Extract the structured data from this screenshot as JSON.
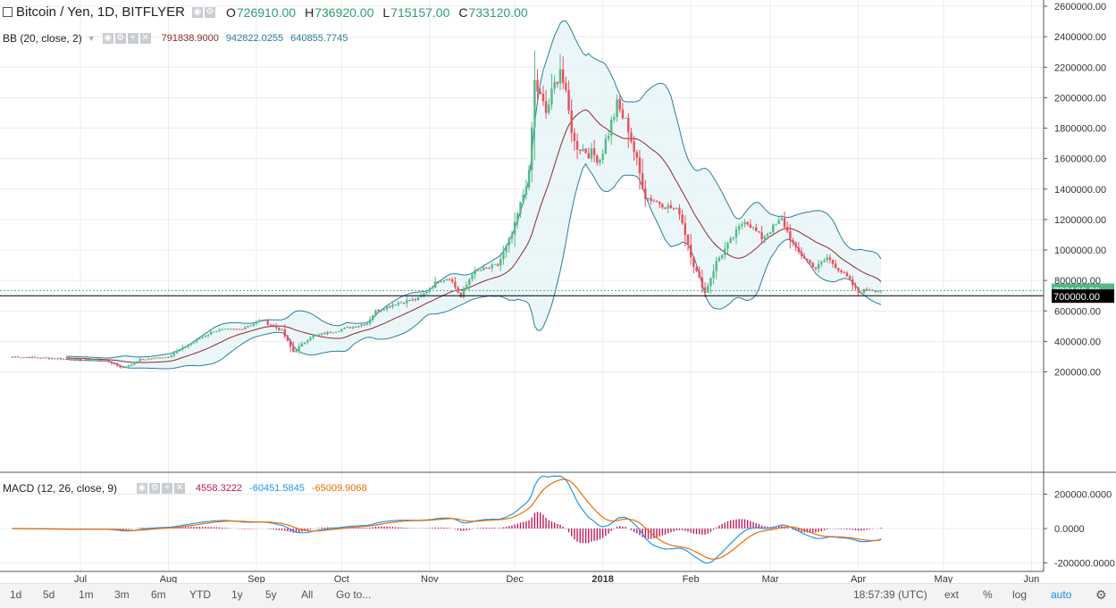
{
  "header": {
    "symbol_title": "Bitcoin / Yen, 1D, BITFLYER",
    "ohlc": [
      {
        "label": "O",
        "value": "726910.00"
      },
      {
        "label": "H",
        "value": "736920.00"
      },
      {
        "label": "L",
        "value": "715157.00"
      },
      {
        "label": "C",
        "value": "733120.00"
      }
    ]
  },
  "bb_legend": {
    "title": "BB (20, close, 2)",
    "values": [
      {
        "value": "791838.9000",
        "color": "#8d2b2b"
      },
      {
        "value": "942822.0255",
        "color": "#2a7f9b"
      },
      {
        "value": "640855.7745",
        "color": "#2a7f9b"
      }
    ]
  },
  "macd_legend": {
    "title": "MACD (12, 26, close, 9)",
    "values": [
      {
        "value": "4558.3222",
        "color": "#c2185b"
      },
      {
        "value": "-60451.5845",
        "color": "#2196f3"
      },
      {
        "value": "-65009.9068",
        "color": "#ef6c00"
      }
    ]
  },
  "price_labels": {
    "last": "733120.00",
    "level": "700000.00"
  },
  "time_axis": [
    "Jul",
    "Aug",
    "Sep",
    "Oct",
    "Nov",
    "Dec",
    "2018",
    "Feb",
    "Mar",
    "Apr",
    "May",
    "Jun"
  ],
  "bottom_toolbar": {
    "ranges": [
      "1d",
      "5d",
      "1m",
      "3m",
      "6m",
      "YTD",
      "1y",
      "5y",
      "All"
    ],
    "goto": "Go to...",
    "clock": "18:57:39 (UTC)",
    "right": [
      "ext",
      "%",
      "log",
      "auto"
    ],
    "active": "auto"
  },
  "chart_data": [
    {
      "type": "candlestick",
      "title": "Bitcoin / Yen, 1D, BITFLYER",
      "x_axis": "date",
      "ylim": [
        100000,
        2600000
      ],
      "y_ticks": [
        200000,
        400000,
        600000,
        800000,
        1000000,
        1200000,
        1400000,
        1600000,
        1800000,
        2000000,
        2200000,
        2400000,
        2600000
      ],
      "y_tick_labels": [
        "200000.00",
        "400000.00",
        "600000.00",
        "800000.00",
        "1000000.00",
        "1200000.00",
        "1400000.00",
        "1600000.00",
        "1800000.00",
        "2000000.00",
        "2200000.00",
        "2400000.00",
        "2600000.00"
      ],
      "grid": true,
      "horizontal_line": 700000,
      "up_color": "#53b987",
      "down_color": "#eb4d5c",
      "close_anchors": [
        [
          "2017-06-07",
          300000
        ],
        [
          "2017-06-20",
          290000
        ],
        [
          "2017-07-01",
          280000
        ],
        [
          "2017-07-10",
          275000
        ],
        [
          "2017-07-16",
          225000
        ],
        [
          "2017-07-22",
          280000
        ],
        [
          "2017-08-01",
          300000
        ],
        [
          "2017-08-08",
          380000
        ],
        [
          "2017-08-17",
          470000
        ],
        [
          "2017-08-26",
          480000
        ],
        [
          "2017-09-03",
          540000
        ],
        [
          "2017-09-10",
          470000
        ],
        [
          "2017-09-14",
          330000
        ],
        [
          "2017-09-20",
          430000
        ],
        [
          "2017-09-29",
          470000
        ],
        [
          "2017-10-10",
          520000
        ],
        [
          "2017-10-13",
          600000
        ],
        [
          "2017-10-20",
          650000
        ],
        [
          "2017-10-28",
          680000
        ],
        [
          "2017-11-04",
          800000
        ],
        [
          "2017-11-08",
          820000
        ],
        [
          "2017-11-12",
          690000
        ],
        [
          "2017-11-16",
          850000
        ],
        [
          "2017-11-25",
          900000
        ],
        [
          "2017-11-30",
          1100000
        ],
        [
          "2017-12-06",
          1500000
        ],
        [
          "2017-12-08",
          2100000
        ],
        [
          "2017-12-12",
          1900000
        ],
        [
          "2017-12-17",
          2200000
        ],
        [
          "2017-12-22",
          1700000
        ],
        [
          "2017-12-26",
          1650000
        ],
        [
          "2017-12-31",
          1600000
        ],
        [
          "2018-01-06",
          1950000
        ],
        [
          "2018-01-10",
          1800000
        ],
        [
          "2018-01-16",
          1350000
        ],
        [
          "2018-01-22",
          1300000
        ],
        [
          "2018-01-28",
          1250000
        ],
        [
          "2018-02-02",
          900000
        ],
        [
          "2018-02-06",
          720000
        ],
        [
          "2018-02-10",
          920000
        ],
        [
          "2018-02-20",
          1200000
        ],
        [
          "2018-02-26",
          1080000
        ],
        [
          "2018-03-05",
          1200000
        ],
        [
          "2018-03-10",
          1000000
        ],
        [
          "2018-03-17",
          880000
        ],
        [
          "2018-03-21",
          950000
        ],
        [
          "2018-03-28",
          820000
        ],
        [
          "2018-04-01",
          720000
        ],
        [
          "2018-04-05",
          745000
        ],
        [
          "2018-04-09",
          733120
        ]
      ],
      "bollinger_bands": {
        "period": 20,
        "stddev": 2,
        "basis_last": 791838.9,
        "upper_last": 942822.0255,
        "lower_last": 640855.7745
      }
    },
    {
      "type": "line",
      "title": "MACD (12, 26, close, 9)",
      "x_axis": "date",
      "ylim": [
        -200000,
        300000
      ],
      "y_ticks": [
        -200000,
        0,
        200000
      ],
      "y_tick_labels": [
        "-200000.0000",
        "0.0000",
        "200000.0000"
      ],
      "series": [
        {
          "name": "histogram",
          "last": 4558.3222,
          "color": "#c2185b"
        },
        {
          "name": "macd",
          "last": -60451.5845,
          "color": "#2196f3"
        },
        {
          "name": "signal",
          "last": -65009.9068,
          "color": "#ef6c00"
        }
      ]
    }
  ]
}
